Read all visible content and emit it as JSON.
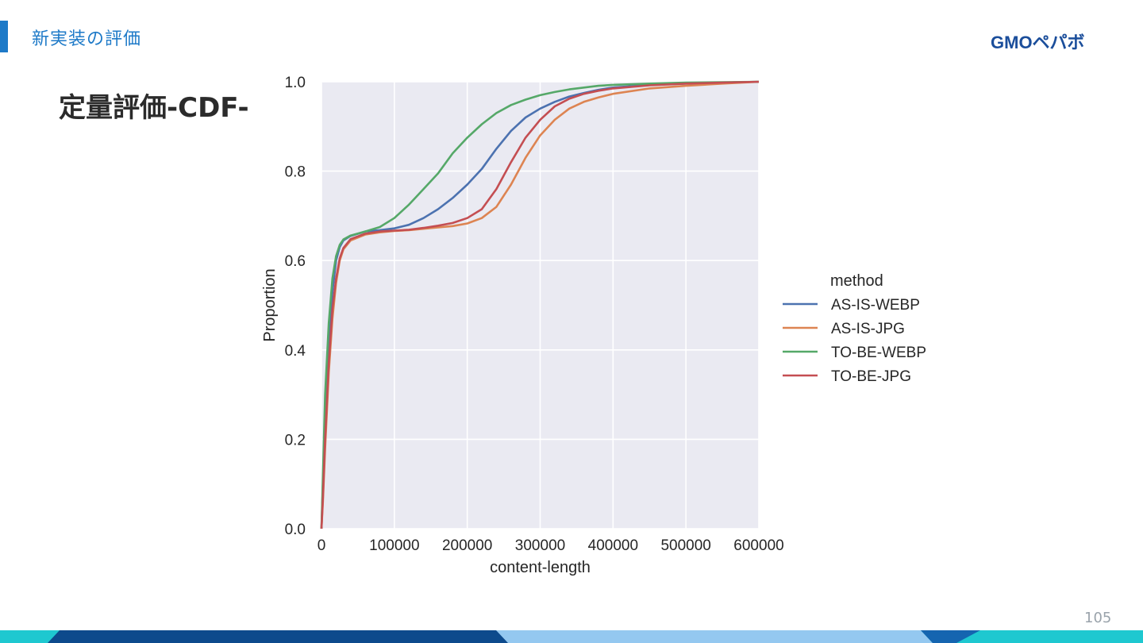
{
  "header": {
    "section_title": "新実装の評価",
    "logo_text": "GMOペパボ"
  },
  "slide": {
    "title": "定量評価-CDF-",
    "page_number": "105"
  },
  "colors": {
    "accent": "#1e7ac8",
    "footer_dark": "#0d4a8c",
    "footer_light": "#94c8f0",
    "footer_cyan": "#1ec8d0",
    "plot_bg": "#eaeaf2"
  },
  "chart_data": {
    "type": "line",
    "title": "",
    "xlabel": "content-length",
    "ylabel": "Proportion",
    "xlim": [
      0,
      600000
    ],
    "ylim": [
      0,
      1.0
    ],
    "x_ticks": [
      "0",
      "100000",
      "200000",
      "300000",
      "400000",
      "500000",
      "600000"
    ],
    "y_ticks": [
      "0.0",
      "0.2",
      "0.4",
      "0.6",
      "0.8",
      "1.0"
    ],
    "grid": true,
    "legend": {
      "title": "method",
      "placement": "right"
    },
    "series": [
      {
        "name": "AS-IS-WEBP",
        "color": "#4c72b0",
        "points": [
          [
            0,
            0
          ],
          [
            2000,
            0.1
          ],
          [
            5000,
            0.25
          ],
          [
            10000,
            0.42
          ],
          [
            15000,
            0.53
          ],
          [
            20000,
            0.6
          ],
          [
            25000,
            0.63
          ],
          [
            30000,
            0.645
          ],
          [
            40000,
            0.655
          ],
          [
            60000,
            0.665
          ],
          [
            80000,
            0.668
          ],
          [
            100000,
            0.672
          ],
          [
            120000,
            0.68
          ],
          [
            140000,
            0.695
          ],
          [
            160000,
            0.715
          ],
          [
            180000,
            0.74
          ],
          [
            200000,
            0.77
          ],
          [
            220000,
            0.805
          ],
          [
            240000,
            0.85
          ],
          [
            260000,
            0.89
          ],
          [
            280000,
            0.92
          ],
          [
            300000,
            0.94
          ],
          [
            320000,
            0.955
          ],
          [
            340000,
            0.967
          ],
          [
            360000,
            0.975
          ],
          [
            380000,
            0.982
          ],
          [
            400000,
            0.987
          ],
          [
            450000,
            0.993
          ],
          [
            500000,
            0.996
          ],
          [
            550000,
            0.998
          ],
          [
            600000,
            1.0
          ]
        ]
      },
      {
        "name": "AS-IS-JPG",
        "color": "#dd8452",
        "points": [
          [
            0,
            0
          ],
          [
            2000,
            0.06
          ],
          [
            5000,
            0.18
          ],
          [
            10000,
            0.35
          ],
          [
            15000,
            0.47
          ],
          [
            20000,
            0.55
          ],
          [
            25000,
            0.6
          ],
          [
            30000,
            0.625
          ],
          [
            40000,
            0.645
          ],
          [
            60000,
            0.658
          ],
          [
            80000,
            0.663
          ],
          [
            100000,
            0.666
          ],
          [
            120000,
            0.668
          ],
          [
            140000,
            0.671
          ],
          [
            160000,
            0.674
          ],
          [
            180000,
            0.677
          ],
          [
            200000,
            0.683
          ],
          [
            220000,
            0.695
          ],
          [
            240000,
            0.72
          ],
          [
            260000,
            0.77
          ],
          [
            280000,
            0.83
          ],
          [
            300000,
            0.88
          ],
          [
            320000,
            0.915
          ],
          [
            340000,
            0.94
          ],
          [
            360000,
            0.955
          ],
          [
            380000,
            0.965
          ],
          [
            400000,
            0.973
          ],
          [
            450000,
            0.985
          ],
          [
            500000,
            0.991
          ],
          [
            550000,
            0.996
          ],
          [
            600000,
            1.0
          ]
        ]
      },
      {
        "name": "TO-BE-WEBP",
        "color": "#55a868",
        "points": [
          [
            0,
            0
          ],
          [
            2000,
            0.12
          ],
          [
            5000,
            0.3
          ],
          [
            10000,
            0.46
          ],
          [
            15000,
            0.56
          ],
          [
            20000,
            0.61
          ],
          [
            25000,
            0.635
          ],
          [
            30000,
            0.647
          ],
          [
            40000,
            0.656
          ],
          [
            60000,
            0.665
          ],
          [
            80000,
            0.675
          ],
          [
            100000,
            0.695
          ],
          [
            120000,
            0.725
          ],
          [
            140000,
            0.76
          ],
          [
            160000,
            0.795
          ],
          [
            180000,
            0.84
          ],
          [
            200000,
            0.875
          ],
          [
            220000,
            0.905
          ],
          [
            240000,
            0.93
          ],
          [
            260000,
            0.948
          ],
          [
            280000,
            0.96
          ],
          [
            300000,
            0.97
          ],
          [
            320000,
            0.977
          ],
          [
            340000,
            0.983
          ],
          [
            360000,
            0.987
          ],
          [
            380000,
            0.991
          ],
          [
            400000,
            0.993
          ],
          [
            450000,
            0.996
          ],
          [
            500000,
            0.998
          ],
          [
            550000,
            0.999
          ],
          [
            600000,
            1.0
          ]
        ]
      },
      {
        "name": "TO-BE-JPG",
        "color": "#c44e52",
        "points": [
          [
            0,
            0
          ],
          [
            2000,
            0.07
          ],
          [
            5000,
            0.2
          ],
          [
            10000,
            0.37
          ],
          [
            15000,
            0.49
          ],
          [
            20000,
            0.56
          ],
          [
            25000,
            0.605
          ],
          [
            30000,
            0.628
          ],
          [
            40000,
            0.648
          ],
          [
            60000,
            0.66
          ],
          [
            80000,
            0.665
          ],
          [
            100000,
            0.667
          ],
          [
            120000,
            0.669
          ],
          [
            140000,
            0.673
          ],
          [
            160000,
            0.678
          ],
          [
            180000,
            0.684
          ],
          [
            200000,
            0.695
          ],
          [
            220000,
            0.715
          ],
          [
            240000,
            0.76
          ],
          [
            260000,
            0.82
          ],
          [
            280000,
            0.875
          ],
          [
            300000,
            0.915
          ],
          [
            320000,
            0.945
          ],
          [
            340000,
            0.962
          ],
          [
            360000,
            0.973
          ],
          [
            380000,
            0.98
          ],
          [
            400000,
            0.985
          ],
          [
            450000,
            0.992
          ],
          [
            500000,
            0.996
          ],
          [
            550000,
            0.998
          ],
          [
            600000,
            1.0
          ]
        ]
      }
    ]
  }
}
